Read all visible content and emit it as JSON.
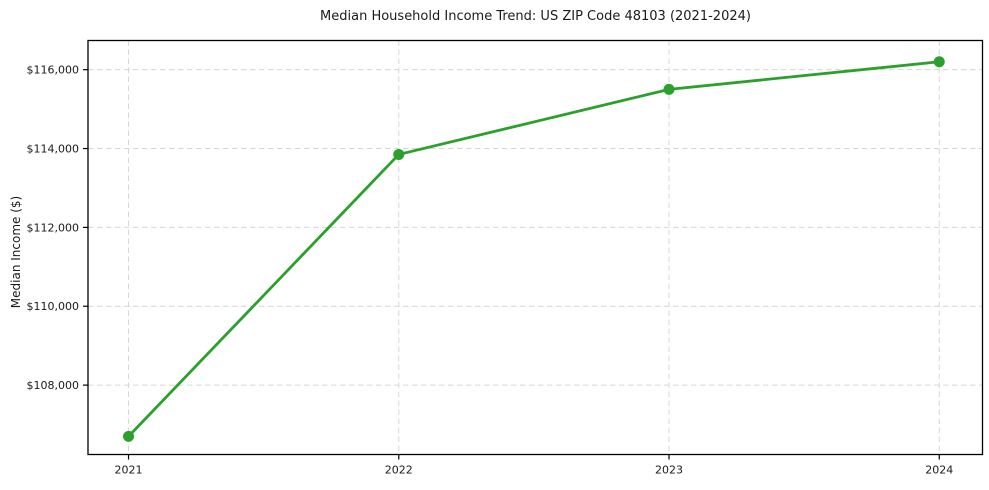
{
  "chart_data": {
    "type": "line",
    "title": "Median Household Income Trend: US ZIP Code 48103 (2021-2024)",
    "xlabel": "",
    "ylabel": "Median Income ($)",
    "x": [
      2021,
      2022,
      2023,
      2024
    ],
    "x_tick_labels": [
      "2021",
      "2022",
      "2023",
      "2024"
    ],
    "series": [
      {
        "name": "median-household-income",
        "values": [
          106700,
          113850,
          115500,
          116200
        ]
      }
    ],
    "y_ticks": [
      108000,
      110000,
      112000,
      114000,
      116000
    ],
    "y_tick_labels": [
      "$108,000",
      "$110,000",
      "$112,000",
      "$114,000",
      "$116,000"
    ],
    "xlim": [
      2020.85,
      2024.16
    ],
    "ylim": [
      106240,
      116740
    ],
    "grid": "dashed-both-axes",
    "legend": "none",
    "colors": {
      "line": "#2ca02c",
      "marker": "#2ca02c",
      "grid": "#d6d6d6",
      "axis": "#000000",
      "text": "#1a1a1a",
      "background": "#ffffff"
    }
  }
}
